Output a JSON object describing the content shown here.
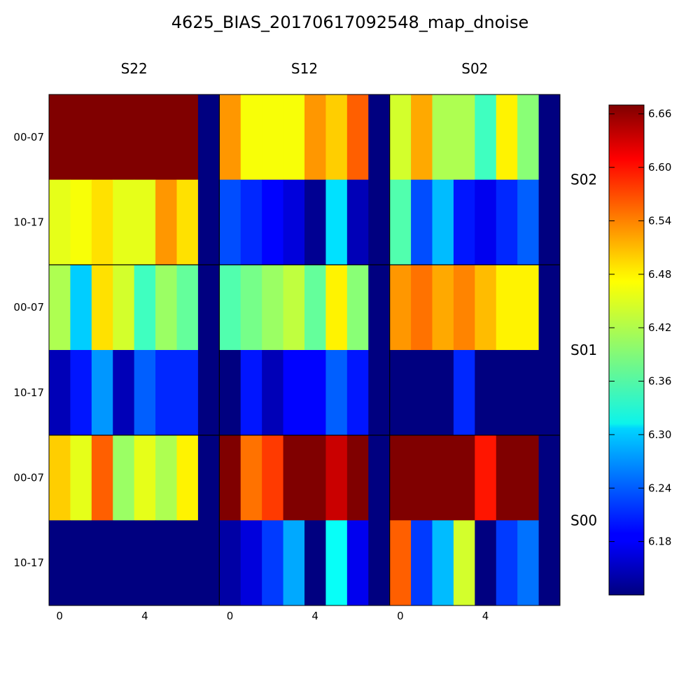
{
  "chart_data": {
    "type": "heatmap",
    "title": "4625_BIAS_20170617092548_map_dnoise",
    "column_labels": [
      "S22",
      "S12",
      "S02"
    ],
    "row_labels": [
      "S02",
      "S01",
      "S00"
    ],
    "y_tick_labels": [
      "00-07",
      "10-17"
    ],
    "x_tick_labels": [
      "0",
      "4"
    ],
    "x_ticks": [
      0,
      4
    ],
    "channels_per_row": 8,
    "colorbar": {
      "min": 6.12,
      "max": 6.67,
      "ticks": [
        "6.18",
        "6.24",
        "6.30",
        "6.36",
        "6.42",
        "6.48",
        "6.54",
        "6.60",
        "6.66"
      ],
      "colormap": "jet"
    },
    "panels": [
      {
        "row": "S02",
        "column": "S22",
        "upper": [
          6.67,
          6.67,
          6.67,
          6.67,
          6.67,
          6.67,
          6.67,
          6.12
        ],
        "lower": [
          6.45,
          6.46,
          6.48,
          6.45,
          6.45,
          6.52,
          6.48,
          6.12
        ]
      },
      {
        "row": "S02",
        "column": "S12",
        "upper": [
          6.52,
          6.46,
          6.46,
          6.46,
          6.52,
          6.49,
          6.55,
          6.12
        ],
        "lower": [
          6.23,
          6.21,
          6.19,
          6.17,
          6.13,
          6.31,
          6.15,
          6.12
        ]
      },
      {
        "row": "S02",
        "column": "S02",
        "upper": [
          6.44,
          6.51,
          6.42,
          6.42,
          6.36,
          6.47,
          6.4,
          6.12
        ],
        "lower": [
          6.37,
          6.23,
          6.29,
          6.2,
          6.18,
          6.21,
          6.24,
          6.12
        ]
      },
      {
        "row": "S01",
        "column": "S22",
        "upper": [
          6.42,
          6.3,
          6.48,
          6.44,
          6.36,
          6.41,
          6.38,
          6.12
        ],
        "lower": [
          6.15,
          6.2,
          6.27,
          6.15,
          6.24,
          6.21,
          6.21,
          6.12
        ]
      },
      {
        "row": "S01",
        "column": "S12",
        "upper": [
          6.37,
          6.39,
          6.41,
          6.43,
          6.38,
          6.47,
          6.4,
          6.12
        ],
        "lower": [
          6.12,
          6.2,
          6.15,
          6.19,
          6.19,
          6.24,
          6.2,
          6.12
        ]
      },
      {
        "row": "S01",
        "column": "S02",
        "upper": [
          6.52,
          6.54,
          6.51,
          6.53,
          6.5,
          6.47,
          6.47,
          6.12
        ],
        "lower": [
          6.12,
          6.12,
          6.12,
          6.21,
          6.12,
          6.12,
          6.12,
          6.12
        ]
      },
      {
        "row": "S00",
        "column": "S22",
        "upper": [
          6.49,
          6.45,
          6.55,
          6.41,
          6.45,
          6.42,
          6.47,
          6.12
        ],
        "lower": [
          6.12,
          6.12,
          6.12,
          6.12,
          6.12,
          6.12,
          6.12,
          6.12
        ]
      },
      {
        "row": "S00",
        "column": "S12",
        "upper": [
          6.67,
          6.54,
          6.57,
          6.67,
          6.67,
          6.63,
          6.67,
          6.12
        ],
        "lower": [
          6.14,
          6.17,
          6.22,
          6.28,
          6.12,
          6.33,
          6.18,
          6.12
        ]
      },
      {
        "row": "S00",
        "column": "S02",
        "upper": [
          6.67,
          6.67,
          6.67,
          6.67,
          6.59,
          6.67,
          6.67,
          6.12
        ],
        "lower": [
          6.55,
          6.22,
          6.29,
          6.44,
          6.12,
          6.22,
          6.25,
          6.12
        ]
      }
    ]
  }
}
